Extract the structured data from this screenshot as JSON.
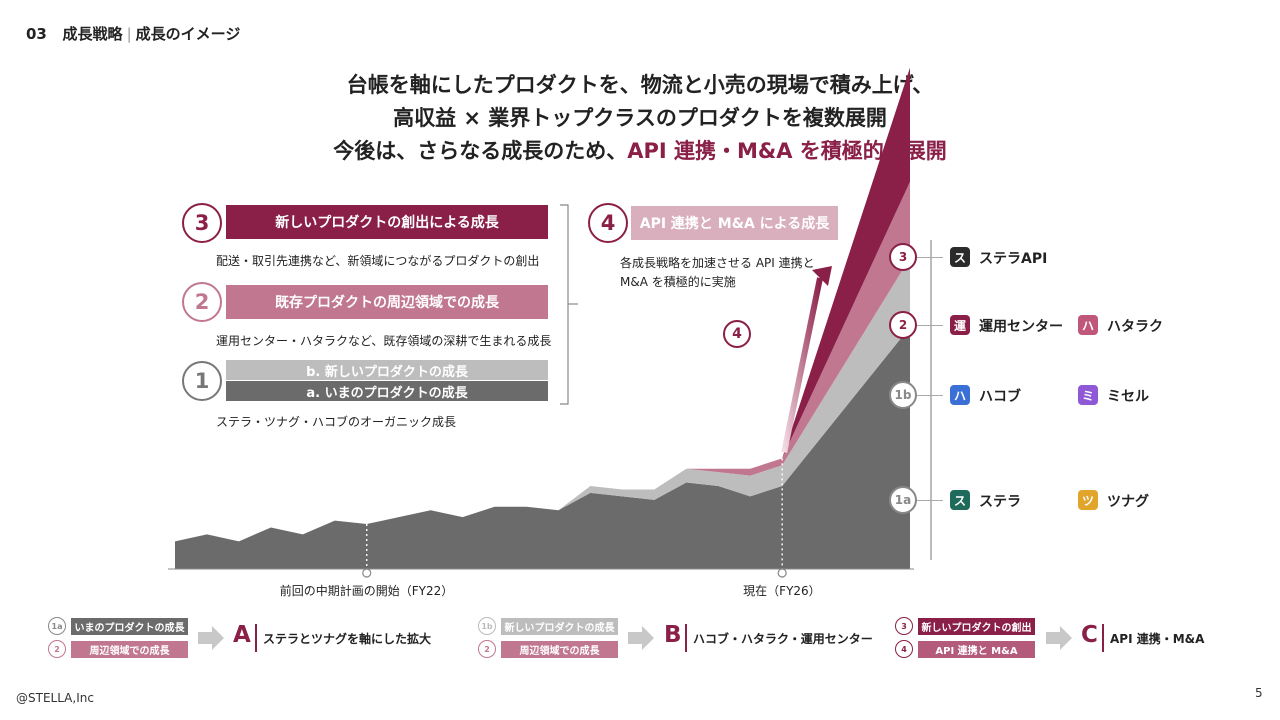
{
  "header": {
    "section_number": "03",
    "section_title": "成長戦略",
    "section_subtitle": "成長のイメージ"
  },
  "headline": {
    "line1": "台帳を軸にしたプロダクトを、物流と小売の現場で積み上げ、",
    "line2": "高収益 × 業界トップクラスのプロダクトを複数展開",
    "line3_prefix": "今後は、さらなる成長のため、",
    "line3_accent": "API 連携・M&A を積極的に展開"
  },
  "strategies": {
    "s3": {
      "number": "3",
      "title": "新しいプロダクトの創出による成長",
      "desc": "配送・取引先連携など、新領域につながるプロダクトの創出"
    },
    "s2": {
      "number": "2",
      "title": "既存プロダクトの周辺領域での成長",
      "desc": "運用センター・ハタラクなど、既存領域の深耕で生まれる成長"
    },
    "s1": {
      "number": "1",
      "title_b": "b. 新しいプロダクトの成長",
      "title_a": "a. いまのプロダクトの成長",
      "desc": "ステラ・ツナグ・ハコブのオーガニック成長"
    },
    "s4": {
      "number": "4",
      "title": "API 連携と M&A による成長",
      "desc_line1": "各成長戦略を加速させる API 連携と",
      "desc_line2": "M&A を積極的に実施"
    }
  },
  "chart_data": {
    "type": "area",
    "title": "",
    "xlabel": "",
    "ylabel": "",
    "ylim": [
      0,
      100
    ],
    "x_markers": [
      {
        "x": 6,
        "label": "前回の中期計画の開始（FY22）"
      },
      {
        "x": 19,
        "label": "現在（FY26）"
      }
    ],
    "x": [
      0,
      1,
      2,
      3,
      4,
      5,
      6,
      7,
      8,
      9,
      10,
      11,
      12,
      13,
      14,
      15,
      16,
      17,
      18,
      19,
      20,
      21,
      22,
      23
    ],
    "series": [
      {
        "name": "1a",
        "values": [
          8,
          10,
          8,
          12,
          10,
          14,
          13,
          15,
          17,
          15,
          18,
          18,
          17,
          22,
          21,
          20,
          25,
          24,
          21,
          24,
          28,
          27,
          24,
          30
        ]
      },
      {
        "name": "1b",
        "values": [
          0,
          0,
          0,
          0,
          0,
          0,
          0,
          0,
          0,
          0,
          0,
          0,
          0,
          2,
          2,
          3,
          4,
          4,
          6,
          6,
          7,
          7,
          8,
          8
        ]
      },
      {
        "name": "2",
        "values": [
          0,
          0,
          0,
          0,
          0,
          0,
          0,
          0,
          0,
          0,
          0,
          0,
          0,
          0,
          0,
          0,
          0,
          1,
          2,
          2,
          3,
          3,
          4,
          6
        ]
      },
      {
        "name": "3",
        "values": [
          0,
          0,
          0,
          0,
          0,
          0,
          0,
          0,
          0,
          0,
          0,
          0,
          0,
          0,
          0,
          0,
          0,
          0,
          0,
          0,
          0,
          0,
          1,
          1
        ]
      }
    ],
    "projection": {
      "x_start": 19,
      "x_end": 23,
      "end_values": {
        "1a": 70,
        "1b": 20,
        "2": 22,
        "3": 33
      }
    },
    "arrow_label": "4"
  },
  "legend": {
    "l3": {
      "marker": "3",
      "products": [
        {
          "icon": "ス",
          "name": "ステラAPI",
          "color": "#2b2b2b"
        }
      ]
    },
    "l2": {
      "marker": "2",
      "products": [
        {
          "icon": "運",
          "name": "運用センター",
          "color": "#8a1f47"
        },
        {
          "icon": "ハ",
          "name": "ハタラク",
          "color": "#c0577a"
        }
      ]
    },
    "l1b": {
      "marker": "1b",
      "products": [
        {
          "icon": "ハ",
          "name": "ハコブ",
          "color": "#3a6fd8"
        },
        {
          "icon": "ミ",
          "name": "ミセル",
          "color": "#8f58d6"
        }
      ]
    },
    "l1a": {
      "marker": "1a",
      "products": [
        {
          "icon": "ス",
          "name": "ステラ",
          "color": "#1f6a5a"
        },
        {
          "icon": "ツ",
          "name": "ツナグ",
          "color": "#e0a52a"
        }
      ]
    }
  },
  "summary": {
    "A": {
      "letter": "A",
      "desc": "ステラとツナグを軸にした拡大",
      "items": [
        {
          "marker": "1a",
          "label": "いまのプロダクトの成長"
        },
        {
          "marker": "2",
          "label": "周辺領域での成長"
        }
      ]
    },
    "B": {
      "letter": "B",
      "desc": "ハコブ・ハタラク・運用センター",
      "items": [
        {
          "marker": "1b",
          "label": "新しいプロダクトの成長"
        },
        {
          "marker": "2",
          "label": "周辺領域での成長"
        }
      ]
    },
    "C": {
      "letter": "C",
      "desc": "API 連携・M&A",
      "items": [
        {
          "marker": "3",
          "label": "新しいプロダクトの創出"
        },
        {
          "marker": "4",
          "label": "API 連携と M&A"
        }
      ]
    }
  },
  "footer": {
    "copyright": "@STELLA,Inc",
    "page": "5"
  },
  "colors": {
    "accent": "#8a1f47",
    "pink": "#c0778f",
    "light_pink": "#dcb5c3",
    "gray_dark": "#6b6b6b",
    "gray_light": "#bdbdbd"
  }
}
